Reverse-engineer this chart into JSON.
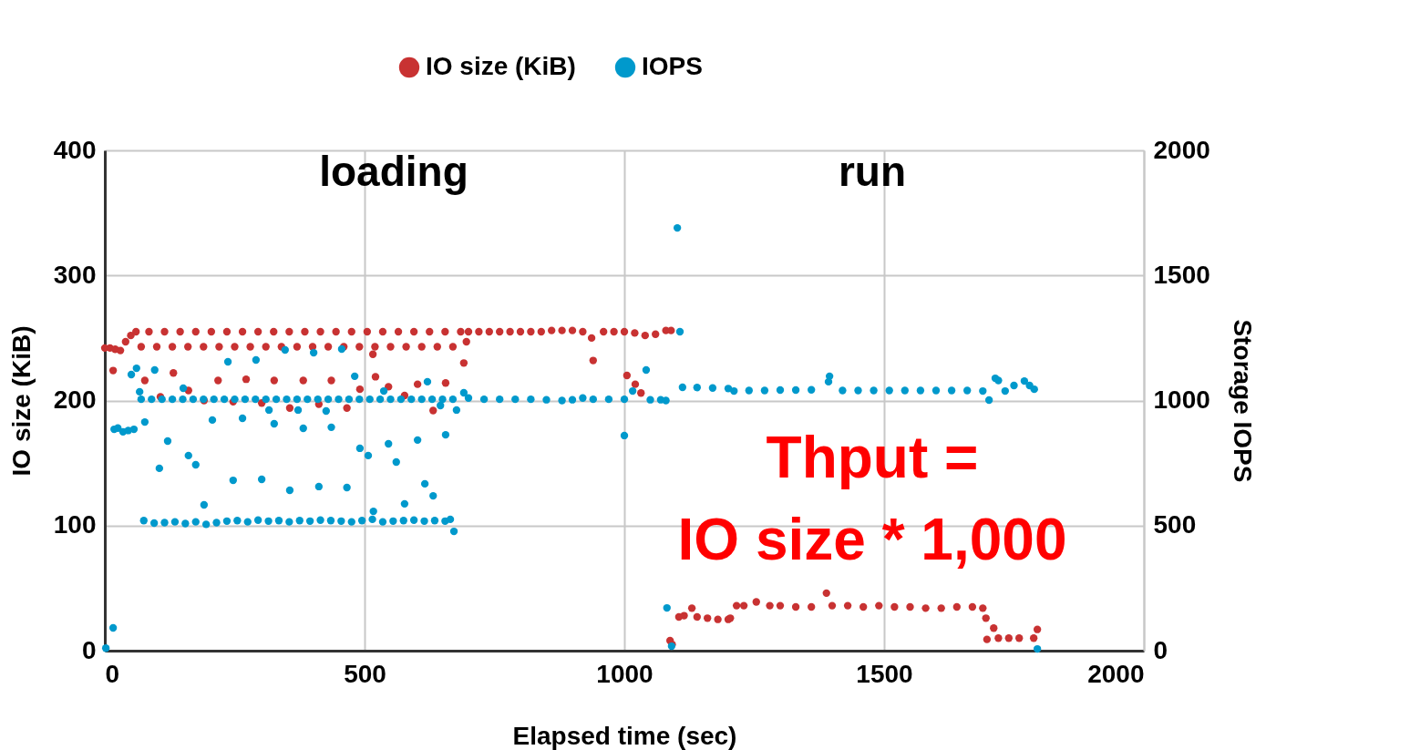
{
  "chart_data": {
    "type": "scatter",
    "xlabel": "Elapsed time (sec)",
    "ylabel": "IO size (KiB)",
    "y2label": "Storage IOPS",
    "xlim": [
      0,
      2000
    ],
    "xticks": [
      0,
      500,
      1000,
      1500,
      2000
    ],
    "ylim": [
      0,
      400
    ],
    "yticks": [
      0,
      100,
      200,
      300,
      400
    ],
    "y2lim": [
      0,
      2000
    ],
    "y2ticks": [
      0,
      500,
      1000,
      1500,
      2000
    ],
    "grid": true,
    "legend": "top",
    "marker": "circle",
    "annotations": [
      "loading",
      "run",
      "Thput =",
      "IO size * 1,000"
    ],
    "series": [
      {
        "name": "IO size (KiB)",
        "color": "#c83232",
        "x": [
          0,
          10,
          20,
          30,
          40,
          50,
          60,
          70,
          85,
          100,
          115,
          130,
          145,
          160,
          175,
          190,
          205,
          220,
          235,
          250,
          265,
          280,
          295,
          310,
          325,
          340,
          355,
          370,
          385,
          400,
          415,
          430,
          445,
          460,
          475,
          490,
          505,
          520,
          535,
          550,
          565,
          580,
          595,
          610,
          625,
          640,
          655,
          670,
          685,
          16,
          77,
          107,
          132,
          161,
          191,
          218,
          247,
          272,
          302,
          326,
          356,
          382,
          412,
          436,
          466,
          491,
          516,
          521,
          546,
          577,
          602,
          632,
          656,
          691,
          696,
          700,
          720,
          740,
          760,
          780,
          800,
          820,
          840,
          860,
          880,
          900,
          920,
          937,
          940,
          960,
          980,
          1000,
          1005,
          1021,
          1032,
          1020,
          1040,
          1060,
          1080,
          1090,
          1088,
          1092,
          1105,
          1115,
          1130,
          1140,
          1160,
          1180,
          1200,
          1204,
          1216,
          1230,
          1254,
          1280,
          1300,
          1330,
          1360,
          1389,
          1400,
          1430,
          1460,
          1490,
          1520,
          1550,
          1580,
          1610,
          1640,
          1670,
          1690,
          1696,
          1711,
          1698,
          1720,
          1740,
          1760,
          1788,
          1795
        ],
        "values": [
          242,
          242,
          241,
          240,
          247,
          252,
          255,
          243,
          255,
          243,
          255,
          243,
          255,
          243,
          255,
          243,
          255,
          243,
          255,
          243,
          255,
          243,
          255,
          243,
          255,
          243,
          255,
          243,
          255,
          243,
          255,
          243,
          255,
          243,
          255,
          243,
          255,
          243,
          255,
          243,
          255,
          243,
          255,
          243,
          255,
          243,
          255,
          243,
          255,
          224,
          216,
          203,
          222,
          208,
          200,
          216,
          199,
          217,
          198,
          216,
          194,
          216,
          197,
          216,
          194,
          209,
          237,
          219,
          211,
          204,
          213,
          192,
          214,
          230,
          247,
          255,
          255,
          255,
          255,
          255,
          255,
          255,
          255,
          256,
          256,
          256,
          255,
          250,
          232,
          255,
          255,
          255,
          220,
          213,
          206,
          254,
          252,
          253,
          256,
          256,
          8,
          5,
          27,
          28,
          34,
          27,
          26,
          25,
          25,
          26,
          36,
          36,
          39,
          36,
          36,
          35,
          35,
          46,
          36,
          36,
          35,
          36,
          35,
          35,
          34,
          34,
          35,
          35,
          34,
          26,
          18,
          9,
          10,
          10,
          10,
          10,
          17
        ]
      },
      {
        "name": "IOPS",
        "color": "#0099cc",
        "axis": "y2",
        "x": [
          2,
          16,
          18,
          25,
          35,
          45,
          56,
          51,
          61,
          96,
          67,
          77,
          105,
          121,
          151,
          161,
          175,
          191,
          207,
          237,
          247,
          265,
          291,
          302,
          316,
          326,
          347,
          356,
          372,
          382,
          402,
          412,
          426,
          436,
          456,
          466,
          481,
          491,
          507,
          517,
          537,
          546,
          561,
          577,
          602,
          616,
          621,
          632,
          646,
          656,
          677,
          672,
          691,
          70,
          90,
          110,
          130,
          150,
          170,
          190,
          210,
          230,
          250,
          270,
          290,
          310,
          330,
          350,
          370,
          390,
          410,
          430,
          450,
          470,
          490,
          510,
          530,
          550,
          570,
          590,
          610,
          630,
          650,
          670,
          75,
          95,
          115,
          135,
          155,
          175,
          195,
          215,
          235,
          255,
          275,
          295,
          315,
          335,
          355,
          375,
          395,
          415,
          435,
          455,
          475,
          495,
          515,
          535,
          555,
          575,
          595,
          615,
          635,
          655,
          665,
          700,
          730,
          760,
          790,
          820,
          850,
          880,
          900,
          920,
          940,
          970,
          1000,
          1000,
          1016,
          1042,
          1050,
          1070,
          1080,
          1102,
          1107,
          1082,
          1091,
          1112,
          1140,
          1170,
          1200,
          1211,
          1240,
          1270,
          1300,
          1330,
          1360,
          1393,
          1395,
          1420,
          1450,
          1480,
          1510,
          1540,
          1570,
          1600,
          1630,
          1660,
          1690,
          1702,
          1714,
          1720,
          1733,
          1750,
          1770,
          1780,
          1789,
          1795
        ],
        "values": [
          10,
          91,
          885,
          890,
          875,
          880,
          885,
          1104,
          1129,
          1122,
          1035,
          914,
          729,
          838,
          1049,
          780,
          743,
          583,
          922,
          1155,
          681,
          929,
          1162,
          685,
          962,
          907,
          1202,
          641,
          962,
          889,
          1191,
          656,
          958,
          893,
          1206,
          652,
          1097,
          809,
          780,
          557,
          1038,
          827,
          754,
          587,
          842,
          667,
          1075,
          619,
          980,
          863,
          962,
          477,
          1031,
          1005,
          1005,
          1005,
          1005,
          1005,
          1005,
          1005,
          1005,
          1005,
          1005,
          1005,
          1005,
          1005,
          1005,
          1005,
          1005,
          1005,
          1005,
          1005,
          1005,
          1005,
          1005,
          1005,
          1005,
          1005,
          1005,
          1005,
          1005,
          1005,
          1005,
          1005,
          520,
          510,
          512,
          515,
          508,
          515,
          505,
          512,
          518,
          520,
          515,
          522,
          518,
          520,
          515,
          520,
          518,
          522,
          520,
          518,
          515,
          520,
          525,
          515,
          518,
          520,
          522,
          518,
          520,
          518,
          525,
          1010,
          1005,
          1005,
          1005,
          1005,
          1003,
          1000,
          1003,
          1010,
          1005,
          1005,
          1005,
          860,
          1038,
          1122,
          1003,
          1003,
          1000,
          1690,
          1275,
          171,
          18,
          1053,
          1052,
          1050,
          1048,
          1038,
          1040,
          1040,
          1042,
          1042,
          1043,
          1075,
          1097,
          1040,
          1040,
          1040,
          1040,
          1040,
          1040,
          1040,
          1040,
          1040,
          1038,
          1002,
          1089,
          1080,
          1038,
          1060,
          1078,
          1060,
          1045,
          7
        ]
      }
    ]
  }
}
